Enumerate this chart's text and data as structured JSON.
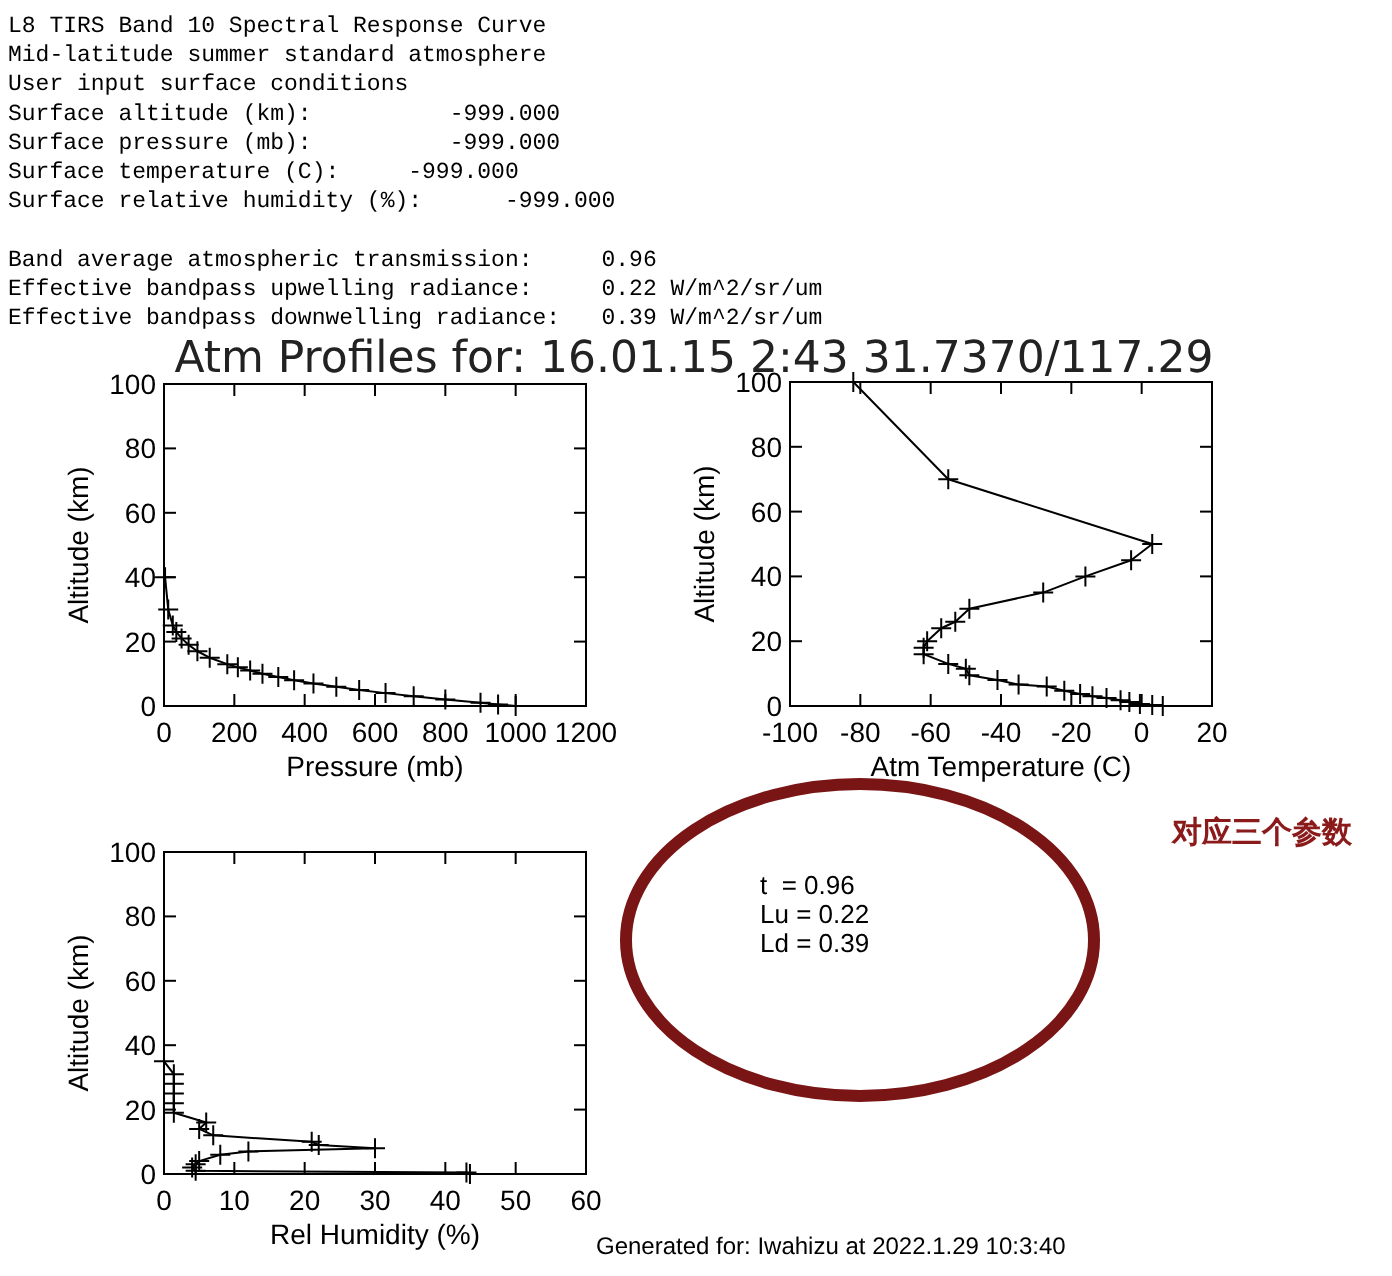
{
  "chart_data": [
    {
      "type": "other",
      "title": "Atm Profiles for: 16.01.15 2:43 31.7370/117.29",
      "annotations": [
        "L8 TIRS Band 10 Spectral Response Curve",
        "Mid-latitude summer standard atmosphere",
        "User input surface conditions",
        "Surface altitude (km):          -999.000",
        "Surface pressure (mb):          -999.000",
        "Surface temperature (C):     -999.000",
        "Surface relative humidity (%):      -999.000",
        "Band average atmospheric transmission:     0.96",
        "Effective bandpass upwelling radiance:     0.22 W/m^2/sr/um",
        "Effective bandpass downwelling radiance:   0.39 W/m^2/sr/um",
        "t  = 0.96",
        "Lu = 0.22",
        "Ld = 0.39",
        "对应三个参数",
        "Generated for: Iwahizu at 2022.1.29 10:3:40"
      ]
    },
    {
      "type": "line",
      "xlabel": "Pressure (mb)",
      "ylabel": "Altitude (km)",
      "color": "#000000",
      "marker": "cross",
      "x": [
        3,
        12,
        25,
        35,
        50,
        70,
        95,
        130,
        180,
        210,
        245,
        280,
        325,
        370,
        425,
        490,
        555,
        630,
        710,
        800,
        900,
        950,
        1000
      ],
      "values": [
        40,
        30,
        25,
        23,
        21,
        19,
        17,
        15,
        13,
        12,
        11,
        10,
        9,
        8,
        7,
        6,
        5,
        4,
        3,
        2,
        1,
        0.5,
        0
      ],
      "xlim": [
        0,
        1200
      ],
      "ylim": [
        0,
        100
      ],
      "xticks": [
        0,
        200,
        400,
        600,
        800,
        1000,
        1200
      ],
      "yticks": [
        0,
        20,
        40,
        60,
        80,
        100
      ]
    },
    {
      "type": "line",
      "xlabel": "Atm Temperature (C)",
      "ylabel": "Altitude (km)",
      "color": "#000000",
      "marker": "cross",
      "x": [
        -82,
        -55,
        3,
        -3,
        -16,
        -28,
        -49,
        -53,
        -57,
        -61,
        -62,
        -62,
        -55,
        -50,
        -49,
        -41,
        -35,
        -27,
        -22,
        -17.5,
        -14,
        -10,
        -6,
        -3.5,
        -0.5,
        3,
        6
      ],
      "values": [
        100,
        70,
        50,
        45,
        40,
        35,
        30,
        26,
        24,
        20,
        18,
        16,
        13,
        11.5,
        9.5,
        8,
        6.6,
        6,
        4.7,
        3.7,
        3,
        2.5,
        1.8,
        1.2,
        0.6,
        0.3,
        0
      ],
      "xlim": [
        -100,
        20
      ],
      "ylim": [
        0,
        100
      ],
      "xticks": [
        -100,
        -80,
        -60,
        -40,
        -20,
        0,
        20
      ],
      "yticks": [
        0,
        20,
        40,
        60,
        80,
        100
      ]
    },
    {
      "type": "line",
      "xlabel": "Rel Humidity (%)",
      "ylabel": "Altitude (km)",
      "color": "#000000",
      "marker": "cross",
      "x": [
        0,
        1.4,
        1.4,
        1.4,
        1.4,
        1.4,
        6,
        5,
        7,
        21,
        22,
        30,
        12,
        8,
        5,
        4.5,
        4,
        4.5,
        43,
        43.5
      ],
      "values": [
        35,
        31,
        28,
        25,
        22,
        19,
        16,
        14,
        12,
        10,
        9,
        8,
        7,
        6,
        4,
        3,
        2,
        1,
        0.5,
        0
      ],
      "xlim": [
        0,
        60
      ],
      "ylim": [
        0,
        100
      ],
      "xticks": [
        0,
        10,
        20,
        30,
        40,
        50,
        60
      ],
      "yticks": [
        0,
        20,
        40,
        60,
        80,
        100
      ]
    }
  ]
}
